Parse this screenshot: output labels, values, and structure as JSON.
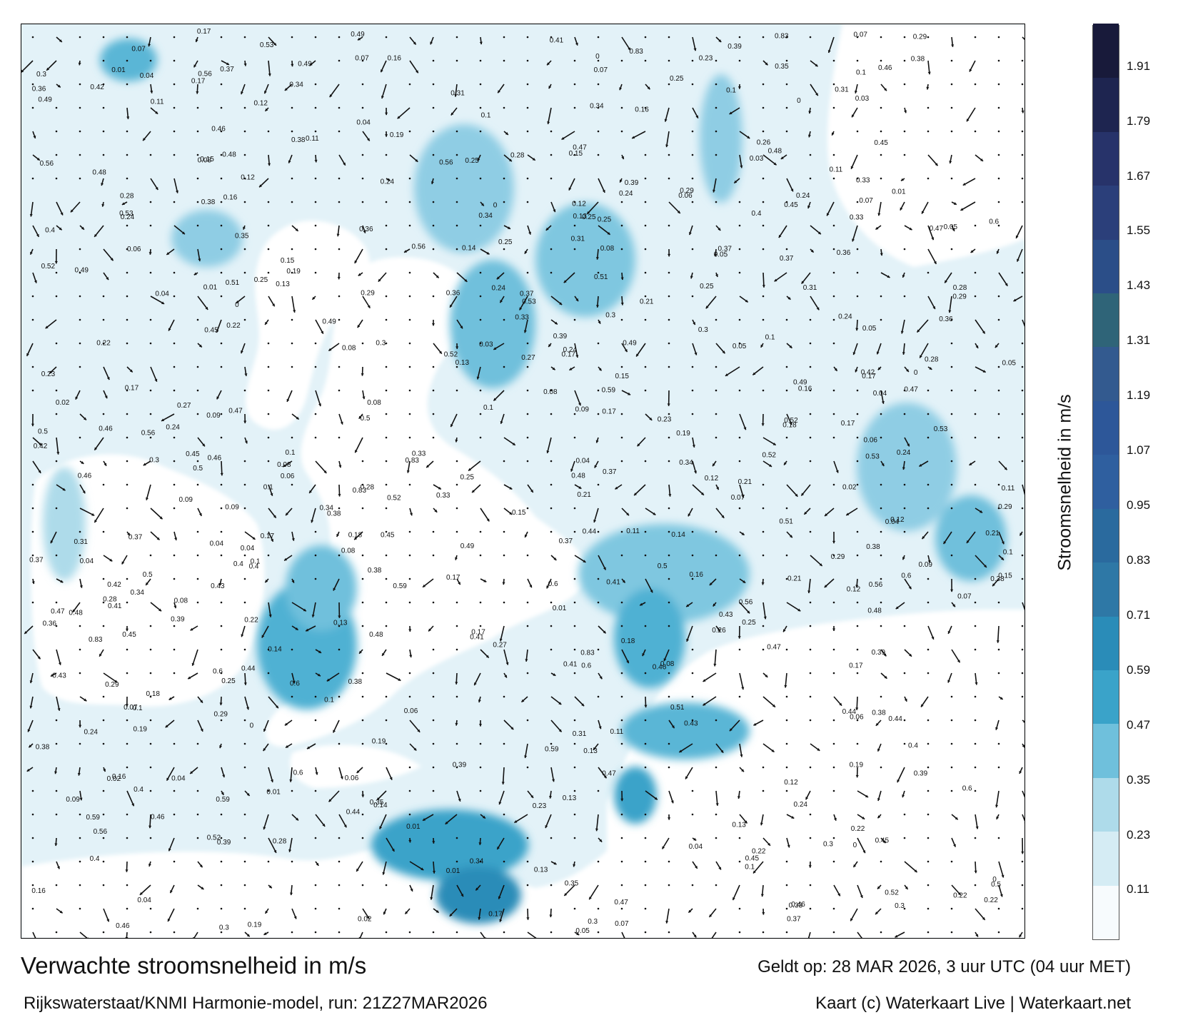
{
  "title": "Verwachte stroomsnelheid in m/s",
  "subtitle": "Rijkswaterstaat/KNMI Harmonie-model, run: 21Z27MAR2026",
  "valid_time": "Geldt op: 28 MAR 2026, 3 uur UTC (04 uur MET)",
  "credit": "Kaart (c) Waterkaart Live | Waterkaart.net",
  "colorbar": {
    "label": "Stroomsnelheid in m/s",
    "ticks": [
      "0.11",
      "0.23",
      "0.35",
      "0.47",
      "0.59",
      "0.71",
      "0.83",
      "0.95",
      "1.07",
      "1.19",
      "1.31",
      "1.43",
      "1.55",
      "1.67",
      "1.79",
      "1.91"
    ],
    "tick_values": [
      0.11,
      0.23,
      0.35,
      0.47,
      0.59,
      0.71,
      0.83,
      0.95,
      1.07,
      1.19,
      1.31,
      1.43,
      1.55,
      1.67,
      1.79,
      1.91
    ],
    "range": [
      0,
      2.0
    ],
    "colors": [
      "#f7fbfd",
      "#d5ecf4",
      "#aedbea",
      "#6fc0dc",
      "#3aa3c9",
      "#2a8cb8",
      "#2e78a6",
      "#2a6a9e",
      "#2f5f9f",
      "#2d5799",
      "#335a8f",
      "#2f6478",
      "#2b4e88",
      "#2b3f7a",
      "#27336a",
      "#1e2550",
      "#181a3a"
    ]
  },
  "chart_data": {
    "type": "map",
    "quantity": "Stroomsnelheid in m/s",
    "time": "28 MAR 2026, 3 uur UTC (04 uur MET)",
    "labels": [
      "0.34",
      "0.15",
      "0.06",
      "0.02",
      "0.17",
      "0.12",
      "0.13",
      "0.23",
      "0.28",
      "0.25",
      "0.26",
      "0.21",
      "0.18",
      "0.14",
      "0.22",
      "0.19",
      "0.16",
      "0.31",
      "0.27",
      "0.37",
      "0.42",
      "0.44",
      "0.39",
      "0.35",
      "0.33",
      "0.29",
      "0.24",
      "0.36",
      "0.43",
      "0.4",
      "0.47",
      "0.46",
      "0.5",
      "0.51",
      "0.45",
      "0.52",
      "0.48",
      "0.38",
      "0.41",
      "0.3",
      "0.56",
      "0.49",
      "0.59",
      "0.53",
      "0.83",
      "0.6",
      "0.05",
      "0.03",
      "0.04",
      "0.07",
      "0.08",
      "0.09",
      "0.1",
      "0.11",
      "0.01",
      "0"
    ]
  }
}
